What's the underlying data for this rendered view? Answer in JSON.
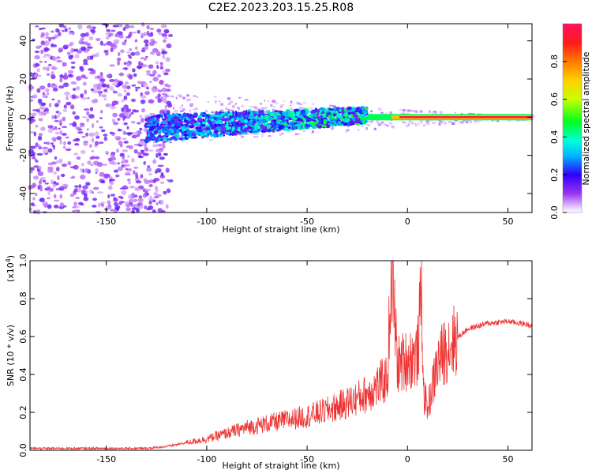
{
  "figure": {
    "title": "C2E2.2023.203.15.25.R08"
  },
  "chart_data": [
    {
      "type": "heatmap",
      "xlabel": "Height of straight line (km)",
      "ylabel": "Frequency (Hz)",
      "xlim": [
        -188,
        62
      ],
      "ylim": [
        -50,
        49
      ],
      "xticks": [
        "-150",
        "-100",
        "-50",
        "0",
        "50"
      ],
      "xtick_values": [
        -150,
        -100,
        -50,
        0,
        50
      ],
      "yticks": [
        "-40",
        "-20",
        "0",
        "20",
        "40"
      ],
      "ytick_values": [
        -40,
        -20,
        0,
        20,
        40
      ],
      "colorbar": {
        "label": "Normalized spectral amplitude",
        "range": [
          0.0,
          1.0
        ],
        "ticks": [
          "0.0",
          "0.2",
          "0.4",
          "0.6",
          "0.8"
        ],
        "tick_values": [
          0.0,
          0.2,
          0.4,
          0.6,
          0.8
        ]
      },
      "features": {
        "noise_region_x": [
          -188,
          -118
        ],
        "spread_region_x": [
          -130,
          -20
        ],
        "narrow_line_x": [
          -20,
          62
        ],
        "line_frequency": 0
      },
      "grid": false
    },
    {
      "type": "line",
      "xlabel": "Height of straight line (km)",
      "ylabel": "SNR (10 * v/v)",
      "multiplier": "(x10",
      "multiplier_exp": "4",
      "multiplier_close": ")",
      "xlim": [
        -188,
        62
      ],
      "ylim": [
        0,
        1.0
      ],
      "xticks": [
        "-150",
        "-100",
        "-50",
        "0",
        "50"
      ],
      "xtick_values": [
        -150,
        -100,
        -50,
        0,
        50
      ],
      "yticks": [
        "0.0",
        "0.2",
        "0.4",
        "0.6",
        "0.8",
        "1.0"
      ],
      "ytick_values": [
        0.0,
        0.2,
        0.4,
        0.6,
        0.8,
        1.0
      ],
      "line_color": "#ee3333",
      "x": [
        -188,
        -170,
        -150,
        -130,
        -120,
        -110,
        -100,
        -90,
        -80,
        -70,
        -60,
        -50,
        -40,
        -30,
        -20,
        -15,
        -10,
        -8,
        -5,
        0,
        5,
        7,
        8,
        10,
        15,
        20,
        30,
        40,
        50,
        62
      ],
      "values": [
        0.01,
        0.01,
        0.01,
        0.01,
        0.02,
        0.04,
        0.06,
        0.09,
        0.12,
        0.14,
        0.16,
        0.18,
        0.21,
        0.25,
        0.3,
        0.34,
        0.38,
        0.99,
        0.45,
        0.48,
        0.5,
        0.85,
        0.3,
        0.22,
        0.46,
        0.55,
        0.64,
        0.67,
        0.68,
        0.66
      ],
      "grid": false
    }
  ]
}
